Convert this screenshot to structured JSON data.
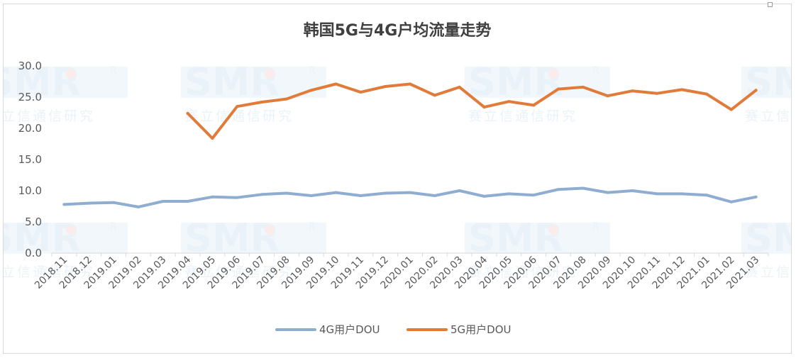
{
  "chart_data": {
    "type": "line",
    "title": "韩国5G与4G户均流量走势",
    "xlabel": "",
    "ylabel": "",
    "ylim": [
      0,
      30
    ],
    "yticks": [
      "0.0",
      "5.0",
      "10.0",
      "15.0",
      "20.0",
      "25.0",
      "30.0"
    ],
    "grid": false,
    "legend_position": "bottom",
    "categories": [
      "2018.11",
      "2018.12",
      "2019.01",
      "2019.02",
      "2019.03",
      "2019.04",
      "2019.05",
      "2019.06",
      "2019.07",
      "2019.08",
      "2019.09",
      "2019.10",
      "2019.11",
      "2019.12",
      "2020.01",
      "2020.02",
      "2020.03",
      "2020.04",
      "2020.05",
      "2020.06",
      "2020.07",
      "2020.08",
      "2020.09",
      "2020.10",
      "2020.11",
      "2020.12",
      "2021.01",
      "2021.02",
      "2021.03"
    ],
    "series": [
      {
        "name": "4G用户DOU",
        "color": "#8fadd0",
        "values": [
          7.8,
          8.0,
          8.1,
          7.4,
          8.3,
          8.3,
          9.0,
          8.9,
          9.4,
          9.6,
          9.2,
          9.7,
          9.2,
          9.6,
          9.7,
          9.2,
          10.0,
          9.1,
          9.5,
          9.3,
          10.2,
          10.4,
          9.7,
          10.0,
          9.5,
          9.5,
          9.3,
          8.2,
          9.0
        ]
      },
      {
        "name": "5G用户DOU",
        "color": "#e07b39",
        "values": [
          null,
          null,
          null,
          null,
          null,
          22.4,
          18.4,
          23.5,
          24.2,
          24.7,
          26.1,
          27.1,
          25.8,
          26.7,
          27.1,
          25.3,
          26.6,
          23.4,
          24.3,
          23.7,
          26.3,
          26.6,
          25.2,
          26.0,
          25.6,
          26.2,
          25.5,
          23.0,
          26.1
        ]
      }
    ]
  },
  "watermark": {
    "logo_text": "SMR",
    "registered_mark": "R",
    "caption": "赛立信通信研究"
  }
}
